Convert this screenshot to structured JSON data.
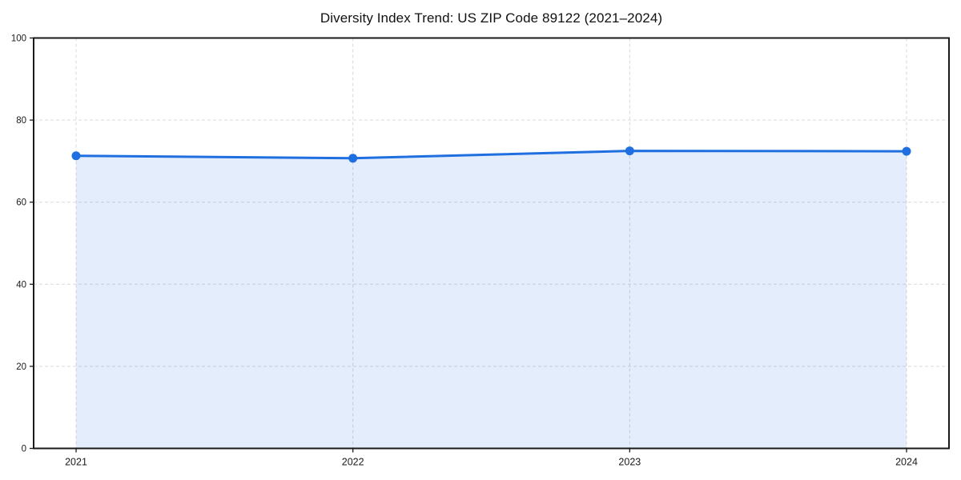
{
  "chart_data": {
    "type": "area",
    "title": "Diversity Index Trend: US ZIP Code 89122 (2021–2024)",
    "series_name": "Diversity Index",
    "categories": [
      "2021",
      "2022",
      "2023",
      "2024"
    ],
    "values": [
      71.3,
      70.7,
      72.5,
      72.4
    ],
    "xlabel": "",
    "ylabel": "",
    "ylim": [
      0,
      100
    ],
    "yticks": [
      0,
      20,
      40,
      60,
      80,
      100
    ],
    "grid": "dashed",
    "legend_position": "none",
    "line_color": "#1f6fe0",
    "marker_color": "#1f6fe0",
    "fill_color": "rgba(31,111,224,0.12)",
    "grid_color": "#d9d9d9",
    "spine_color": "#1a1a1a",
    "tick_label_color": "#1a1a1a",
    "background_color": "#ffffff"
  }
}
